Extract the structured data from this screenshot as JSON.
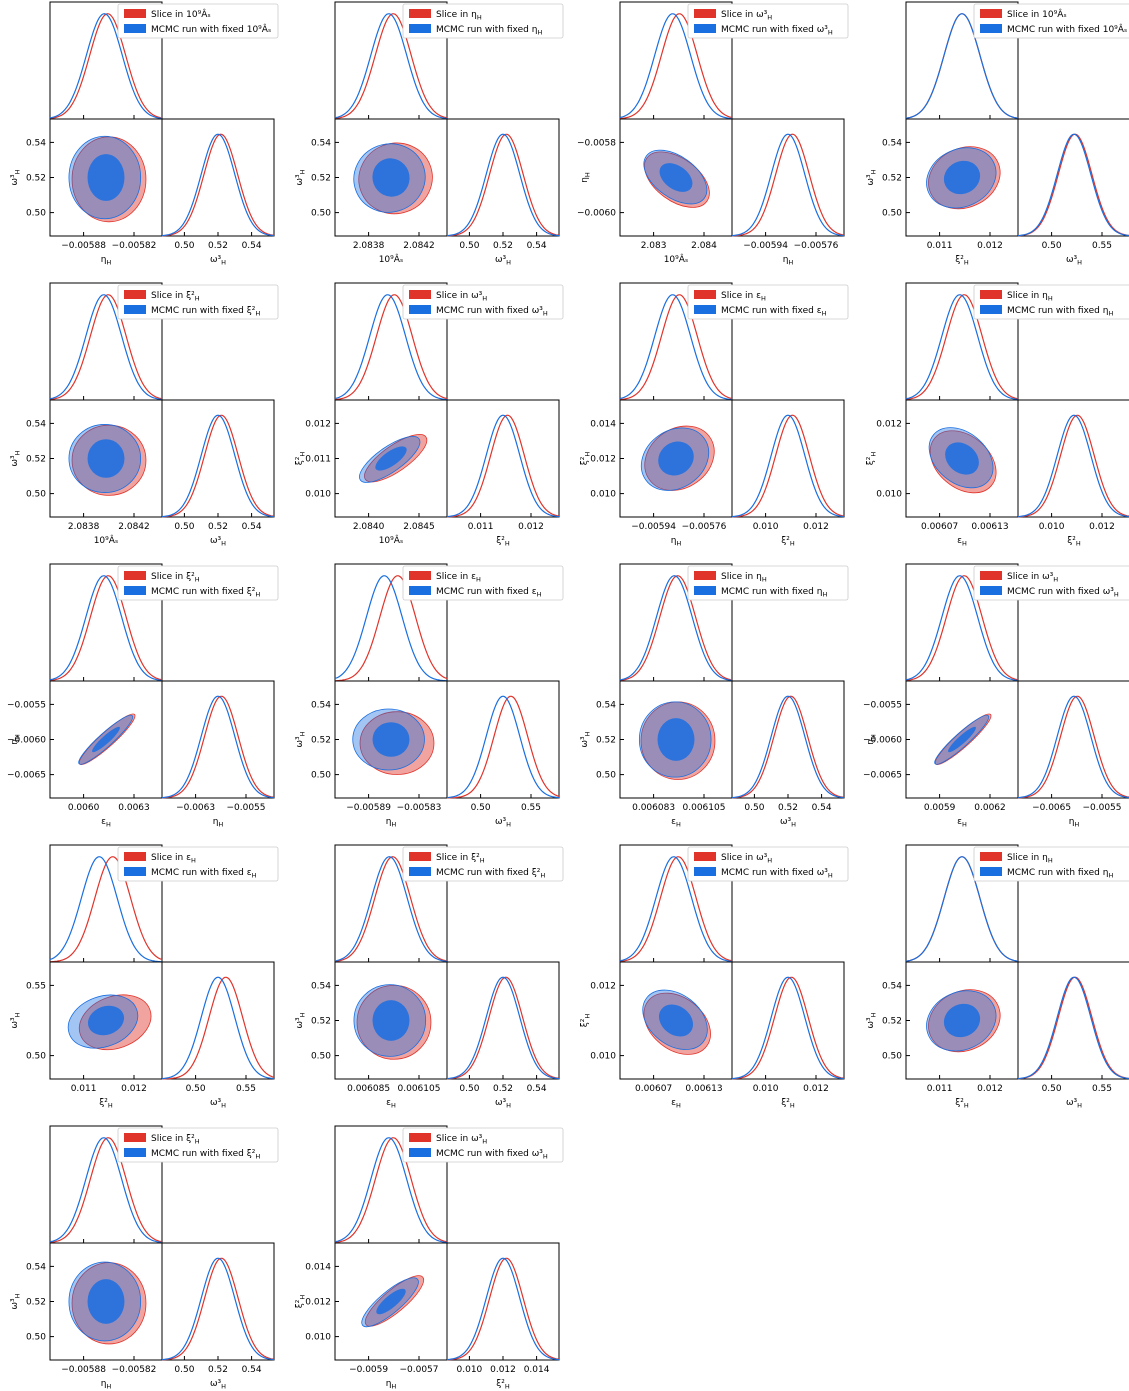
{
  "colors": {
    "slice": "#e0342b",
    "mcmc": "#1a6fe0"
  },
  "legend_prefix": {
    "slice": "Slice in ",
    "mcmc": "MCMC run with fixed "
  },
  "params": {
    "A": "10⁹Âₛ",
    "eta": "η_H",
    "eps": "ε_H",
    "omega": "ω³_H",
    "xi": "ξ²_H"
  },
  "chart_data": [
    {
      "type": "triangle-contour",
      "row": 0,
      "col": 0,
      "fixed": "A",
      "x_param": "eta",
      "y_param": "omega",
      "x_ticks": [
        "−0.00588",
        "−0.00582"
      ],
      "y_ticks": [
        "0.54",
        "0.52",
        "0.50"
      ],
      "xr_ticks": [
        "0.50",
        "0.52",
        "0.54"
      ]
    },
    {
      "type": "triangle-contour",
      "row": 0,
      "col": 1,
      "fixed": "eta",
      "x_param": "A",
      "y_param": "omega",
      "x_ticks": [
        "2.0838",
        "2.0842"
      ],
      "y_ticks": [
        "0.54",
        "0.52",
        "0.50"
      ],
      "xr_ticks": [
        "0.50",
        "0.52",
        "0.54"
      ]
    },
    {
      "type": "triangle-contour",
      "row": 0,
      "col": 2,
      "fixed": "omega",
      "x_param": "A",
      "y_param": "eta",
      "x_ticks": [
        "2.083",
        "2.084"
      ],
      "y_ticks": [
        "−0.0058",
        "−0.0060"
      ],
      "xr_ticks": [
        "−0.00594",
        "−0.00576"
      ]
    },
    {
      "type": "triangle-contour",
      "row": 0,
      "col": 3,
      "fixed": "A",
      "x_param": "xi",
      "y_param": "omega",
      "x_ticks": [
        "0.011",
        "0.012"
      ],
      "y_ticks": [
        "0.54",
        "0.52",
        "0.50"
      ],
      "xr_ticks": [
        "0.50",
        "0.55"
      ]
    },
    {
      "type": "triangle-contour",
      "row": 1,
      "col": 0,
      "fixed": "xi",
      "x_param": "A",
      "y_param": "omega",
      "x_ticks": [
        "2.0838",
        "2.0842"
      ],
      "y_ticks": [
        "0.54",
        "0.52",
        "0.50"
      ],
      "xr_ticks": [
        "0.50",
        "0.52",
        "0.54"
      ]
    },
    {
      "type": "triangle-contour",
      "row": 1,
      "col": 1,
      "fixed": "omega",
      "x_param": "A",
      "y_param": "xi",
      "x_ticks": [
        "2.0840",
        "2.0845"
      ],
      "y_ticks": [
        "0.012",
        "0.011",
        "0.010"
      ],
      "xr_ticks": [
        "0.011",
        "0.012"
      ]
    },
    {
      "type": "triangle-contour",
      "row": 1,
      "col": 2,
      "fixed": "eps",
      "x_param": "eta",
      "y_param": "xi",
      "x_ticks": [
        "−0.00594",
        "−0.00576"
      ],
      "y_ticks": [
        "0.014",
        "0.012",
        "0.010"
      ],
      "xr_ticks": [
        "0.010",
        "0.012"
      ]
    },
    {
      "type": "triangle-contour",
      "row": 1,
      "col": 3,
      "fixed": "eta",
      "x_param": "eps",
      "y_param": "xi",
      "x_ticks": [
        "0.00607",
        "0.00613"
      ],
      "y_ticks": [
        "0.012",
        "0.010"
      ],
      "xr_ticks": [
        "0.010",
        "0.012"
      ]
    },
    {
      "type": "triangle-contour",
      "row": 2,
      "col": 0,
      "fixed": "xi",
      "x_param": "eps",
      "y_param": "eta",
      "x_ticks": [
        "0.0060",
        "0.0063"
      ],
      "y_ticks": [
        "−0.0055",
        "−0.0060",
        "−0.0065"
      ],
      "xr_ticks": [
        "−0.0063",
        "−0.0055"
      ]
    },
    {
      "type": "triangle-contour",
      "row": 2,
      "col": 1,
      "fixed": "eps",
      "x_param": "eta",
      "y_param": "omega",
      "x_ticks": [
        "−0.00589",
        "−0.00583"
      ],
      "y_ticks": [
        "0.54",
        "0.52",
        "0.50"
      ],
      "xr_ticks": [
        "0.50",
        "0.55"
      ]
    },
    {
      "type": "triangle-contour",
      "row": 2,
      "col": 2,
      "fixed": "eta",
      "x_param": "eps",
      "y_param": "omega",
      "x_ticks": [
        "0.006083",
        "0.006105"
      ],
      "y_ticks": [
        "0.54",
        "0.52",
        "0.50"
      ],
      "xr_ticks": [
        "0.50",
        "0.52",
        "0.54"
      ]
    },
    {
      "type": "triangle-contour",
      "row": 2,
      "col": 3,
      "fixed": "omega",
      "x_param": "eps",
      "y_param": "eta",
      "x_ticks": [
        "0.0059",
        "0.0062"
      ],
      "y_ticks": [
        "−0.0055",
        "−0.0060",
        "−0.0065"
      ],
      "xr_ticks": [
        "−0.0065",
        "−0.0055"
      ]
    },
    {
      "type": "triangle-contour",
      "row": 3,
      "col": 0,
      "fixed": "eps",
      "x_param": "xi",
      "y_param": "omega",
      "x_ticks": [
        "0.011",
        "0.012"
      ],
      "y_ticks": [
        "0.55",
        "0.50"
      ],
      "xr_ticks": [
        "0.50",
        "0.55"
      ]
    },
    {
      "type": "triangle-contour",
      "row": 3,
      "col": 1,
      "fixed": "xi",
      "x_param": "eps",
      "y_param": "omega",
      "x_ticks": [
        "0.006085",
        "0.006105"
      ],
      "y_ticks": [
        "0.54",
        "0.52",
        "0.50"
      ],
      "xr_ticks": [
        "0.50",
        "0.52",
        "0.54"
      ]
    },
    {
      "type": "triangle-contour",
      "row": 3,
      "col": 2,
      "fixed": "omega",
      "x_param": "eps",
      "y_param": "xi",
      "x_ticks": [
        "0.00607",
        "0.00613"
      ],
      "y_ticks": [
        "0.012",
        "0.010"
      ],
      "xr_ticks": [
        "0.010",
        "0.012"
      ]
    },
    {
      "type": "triangle-contour",
      "row": 3,
      "col": 3,
      "fixed": "eta",
      "x_param": "xi",
      "y_param": "omega",
      "x_ticks": [
        "0.011",
        "0.012"
      ],
      "y_ticks": [
        "0.54",
        "0.52",
        "0.50"
      ],
      "xr_ticks": [
        "0.50",
        "0.55"
      ]
    },
    {
      "type": "triangle-contour",
      "row": 4,
      "col": 0,
      "fixed": "xi",
      "x_param": "eta",
      "y_param": "omega",
      "x_ticks": [
        "−0.00588",
        "−0.00582"
      ],
      "y_ticks": [
        "0.54",
        "0.52",
        "0.50"
      ],
      "xr_ticks": [
        "0.50",
        "0.52",
        "0.54"
      ]
    },
    {
      "type": "triangle-contour",
      "row": 4,
      "col": 1,
      "fixed": "omega",
      "x_param": "eta",
      "y_param": "xi",
      "x_ticks": [
        "−0.0059",
        "−0.0057"
      ],
      "y_ticks": [
        "0.014",
        "0.012",
        "0.010"
      ],
      "xr_ticks": [
        "0.010",
        "0.012",
        "0.014"
      ]
    }
  ]
}
